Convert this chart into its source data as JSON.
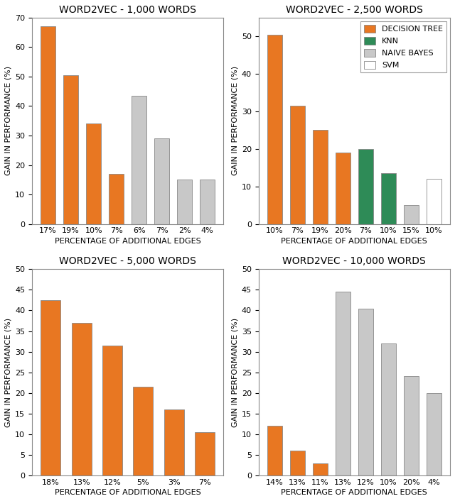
{
  "subplots": [
    {
      "title": "WORD2VEC - 1,000 WORDS",
      "xlabel": "PERCENTAGE OF ADDITIONAL EDGES",
      "ylabel": "GAIN IN PERFORMANCE (%)",
      "ylim": [
        0,
        70
      ],
      "yticks": [
        0,
        10,
        20,
        30,
        40,
        50,
        60,
        70
      ],
      "bars": [
        {
          "value": 67,
          "color": "#E87722",
          "label": "17%"
        },
        {
          "value": 50.5,
          "color": "#E87722",
          "label": "19%"
        },
        {
          "value": 34,
          "color": "#E87722",
          "label": "10%"
        },
        {
          "value": 17,
          "color": "#E87722",
          "label": "7%"
        },
        {
          "value": 43.5,
          "color": "#C8C8C8",
          "label": "6%"
        },
        {
          "value": 29,
          "color": "#C8C8C8",
          "label": "7%"
        },
        {
          "value": 15,
          "color": "#C8C8C8",
          "label": "2%"
        },
        {
          "value": 15,
          "color": "#C8C8C8",
          "label": "4%"
        }
      ]
    },
    {
      "title": "WORD2VEC - 2,500 WORDS",
      "xlabel": "PERCENTAGE OF ADDITIONAL EDGES",
      "ylabel": "GAIN IN PERFORMANCE (%)",
      "ylim": [
        0,
        55
      ],
      "yticks": [
        0,
        10,
        20,
        30,
        40,
        50
      ],
      "bars": [
        {
          "value": 50.5,
          "color": "#E87722",
          "label": "10%"
        },
        {
          "value": 31.5,
          "color": "#E87722",
          "label": "7%"
        },
        {
          "value": 25,
          "color": "#E87722",
          "label": "19%"
        },
        {
          "value": 19,
          "color": "#E87722",
          "label": "20%"
        },
        {
          "value": 20,
          "color": "#2E8B57",
          "label": "7%"
        },
        {
          "value": 13.5,
          "color": "#2E8B57",
          "label": "10%"
        },
        {
          "value": 5,
          "color": "#C8C8C8",
          "label": "15%"
        },
        {
          "value": 12,
          "color": "#FFFFFF",
          "label": "10%"
        }
      ],
      "legend": true
    },
    {
      "title": "WORD2VEC - 5,000 WORDS",
      "xlabel": "PERCENTAGE OF ADDITIONAL EDGES",
      "ylabel": "GAIN IN PERFORMANCE (%)",
      "ylim": [
        0,
        50
      ],
      "yticks": [
        0,
        5,
        10,
        15,
        20,
        25,
        30,
        35,
        40,
        45,
        50
      ],
      "bars": [
        {
          "value": 42.5,
          "color": "#E87722",
          "label": "18%"
        },
        {
          "value": 37,
          "color": "#E87722",
          "label": "13%"
        },
        {
          "value": 31.5,
          "color": "#E87722",
          "label": "12%"
        },
        {
          "value": 21.5,
          "color": "#E87722",
          "label": "5%"
        },
        {
          "value": 16,
          "color": "#E87722",
          "label": "3%"
        },
        {
          "value": 10.5,
          "color": "#E87722",
          "label": "7%"
        }
      ]
    },
    {
      "title": "WORD2VEC - 10,000 WORDS",
      "xlabel": "PERCENTAGE OF ADDITIONAL EDGES",
      "ylabel": "GAIN IN PERFORMANCE (%)",
      "ylim": [
        0,
        50
      ],
      "yticks": [
        0,
        5,
        10,
        15,
        20,
        25,
        30,
        35,
        40,
        45,
        50
      ],
      "bars": [
        {
          "value": 12,
          "color": "#E87722",
          "label": "14%"
        },
        {
          "value": 6,
          "color": "#E87722",
          "label": "13%"
        },
        {
          "value": 3,
          "color": "#E87722",
          "label": "11%"
        },
        {
          "value": 44.5,
          "color": "#C8C8C8",
          "label": "13%"
        },
        {
          "value": 40.5,
          "color": "#C8C8C8",
          "label": "12%"
        },
        {
          "value": 32,
          "color": "#C8C8C8",
          "label": "10%"
        },
        {
          "value": 24,
          "color": "#C8C8C8",
          "label": "20%"
        },
        {
          "value": 20,
          "color": "#C8C8C8",
          "label": "4%"
        }
      ]
    }
  ],
  "legend_entries": [
    {
      "label": "DECISION TREE",
      "color": "#E87722"
    },
    {
      "label": "KNN",
      "color": "#2E8B57"
    },
    {
      "label": "NAIVE BAYES",
      "color": "#C8C8C8"
    },
    {
      "label": "SVM",
      "color": "#FFFFFF"
    }
  ],
  "bar_edgecolor": "#888888",
  "bar_width": 0.65,
  "title_fontsize": 10,
  "label_fontsize": 8,
  "tick_fontsize": 8,
  "legend_fontsize": 8
}
